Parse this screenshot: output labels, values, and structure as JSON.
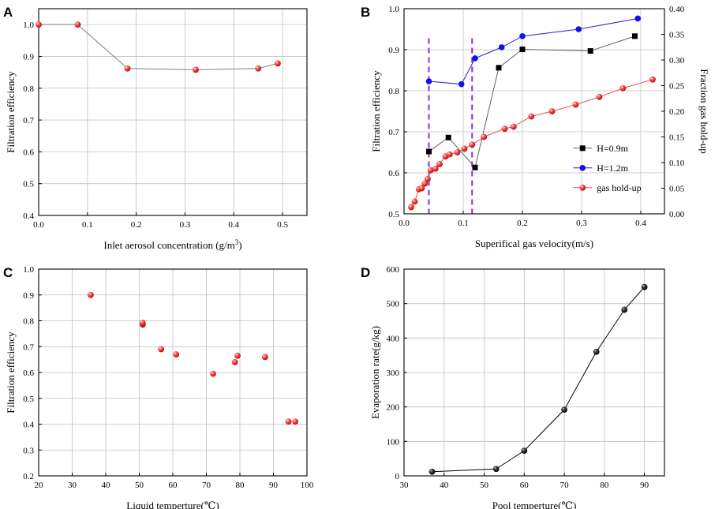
{
  "chart_data": [
    {
      "panel": "A",
      "type": "line",
      "xlabel": "Inlet aerosol concentration (g/m3)",
      "ylabel": "Filtration efficiency",
      "xlim": [
        0,
        0.55
      ],
      "ylim": [
        0.4,
        1.05
      ],
      "xticks": [
        0.0,
        0.1,
        0.2,
        0.3,
        0.4,
        0.5
      ],
      "xtick_labels": [
        "0.0",
        "0.1",
        "0.2",
        "0.3",
        "0.4",
        "0.5"
      ],
      "yticks": [
        0.4,
        0.5,
        0.6,
        0.7,
        0.8,
        0.9,
        1.0
      ],
      "ytick_labels": [
        "0.4",
        "0.5",
        "0.6",
        "0.7",
        "0.8",
        "0.9",
        "1.0"
      ],
      "grid": true,
      "series": [
        {
          "name": "filtration efficiency",
          "color": "#e02020",
          "marker": "sphere",
          "line_color": "#808080",
          "x": [
            0.0,
            0.08,
            0.182,
            0.322,
            0.45,
            0.49
          ],
          "y": [
            1.0,
            1.0,
            0.862,
            0.858,
            0.862,
            0.878
          ]
        }
      ]
    },
    {
      "panel": "B",
      "type": "line",
      "xlabel": "Superifical gas velocity(m/s)",
      "ylabel": "Filtration efficiency",
      "y2label": "Fraction gas hold-up",
      "xlim": [
        0,
        0.44
      ],
      "ylim": [
        0.5,
        1.0
      ],
      "y2lim": [
        0,
        0.4
      ],
      "xticks": [
        0.0,
        0.1,
        0.2,
        0.3,
        0.4
      ],
      "xtick_labels": [
        "0.0",
        "0.1",
        "0.2",
        "0.3",
        "0.4"
      ],
      "yticks": [
        0.5,
        0.6,
        0.7,
        0.8,
        0.9,
        1.0
      ],
      "ytick_labels": [
        "0.5",
        "0.6",
        "0.7",
        "0.8",
        "0.9",
        "1.0"
      ],
      "y2ticks": [
        0,
        0.05,
        0.1,
        0.15,
        0.2,
        0.25,
        0.3,
        0.35,
        0.4
      ],
      "y2tick_labels": [
        "0.00",
        "0.05",
        "0.10",
        "0.15",
        "0.20",
        "0.25",
        "0.30",
        "0.35",
        "0.40"
      ],
      "grid": true,
      "legend": "right",
      "vlines": [
        0.042,
        0.115
      ],
      "vline_color": "#8a2be2",
      "series": [
        {
          "name": "H=0.9m",
          "axis": "left",
          "color": "#000000",
          "marker": "square",
          "line_color": "#606060",
          "x": [
            0.042,
            0.075,
            0.12,
            0.16,
            0.2,
            0.315,
            0.39
          ],
          "y": [
            0.652,
            0.686,
            0.613,
            0.856,
            0.901,
            0.897,
            0.933
          ]
        },
        {
          "name": "H=1.2m",
          "axis": "left",
          "color": "#1010f0",
          "marker": "circle",
          "line_color": "#2020d0",
          "x": [
            0.042,
            0.097,
            0.12,
            0.165,
            0.2,
            0.295,
            0.395
          ],
          "y": [
            0.823,
            0.816,
            0.879,
            0.906,
            0.933,
            0.95,
            0.976
          ]
        },
        {
          "name": "gas hold-up",
          "axis": "right",
          "color": "#e02020",
          "marker": "sphere",
          "line_color": "#e05050",
          "x": [
            0.012,
            0.018,
            0.025,
            0.03,
            0.035,
            0.04,
            0.045,
            0.053,
            0.06,
            0.07,
            0.077,
            0.09,
            0.102,
            0.115,
            0.135,
            0.17,
            0.185,
            0.215,
            0.25,
            0.29,
            0.33,
            0.37,
            0.42
          ],
          "y": [
            0.013,
            0.024,
            0.048,
            0.05,
            0.059,
            0.068,
            0.085,
            0.088,
            0.097,
            0.112,
            0.116,
            0.12,
            0.127,
            0.135,
            0.15,
            0.166,
            0.17,
            0.19,
            0.2,
            0.213,
            0.228,
            0.245,
            0.262
          ]
        }
      ]
    },
    {
      "panel": "C",
      "type": "scatter",
      "xlabel": "Liquid temperture(℃)",
      "ylabel": "Filtration efficiency",
      "xlim": [
        20,
        100
      ],
      "ylim": [
        0.2,
        1.0
      ],
      "xticks": [
        20,
        30,
        40,
        50,
        60,
        70,
        80,
        90,
        100
      ],
      "xtick_labels": [
        "20",
        "30",
        "40",
        "50",
        "60",
        "70",
        "80",
        "90",
        "100"
      ],
      "yticks": [
        0.2,
        0.3,
        0.4,
        0.5,
        0.6,
        0.7,
        0.8,
        0.9,
        1.0
      ],
      "ytick_labels": [
        "0.2",
        "0.3",
        "0.4",
        "0.5",
        "0.6",
        "0.7",
        "0.8",
        "0.9",
        "1.0"
      ],
      "grid": true,
      "series": [
        {
          "name": "filtration efficiency",
          "color": "#e02020",
          "marker": "sphere",
          "x": [
            35.5,
            51,
            51,
            56.5,
            61,
            72,
            78.5,
            79.3,
            87.5,
            94.5,
            96.5
          ],
          "y": [
            0.9,
            0.785,
            0.792,
            0.69,
            0.67,
            0.595,
            0.64,
            0.665,
            0.66,
            0.41,
            0.41
          ]
        }
      ]
    },
    {
      "panel": "D",
      "type": "line",
      "xlabel": "Pool temperture(℃)",
      "ylabel": "Evaporation rate(g/kg)",
      "xlim": [
        30,
        95
      ],
      "ylim": [
        0,
        600
      ],
      "xticks": [
        30,
        40,
        50,
        60,
        70,
        80,
        90
      ],
      "xtick_labels": [
        "30",
        "40",
        "50",
        "60",
        "70",
        "80",
        "90"
      ],
      "yticks": [
        0,
        100,
        200,
        300,
        400,
        500,
        600
      ],
      "ytick_labels": [
        "0",
        "100",
        "200",
        "300",
        "400",
        "500",
        "600"
      ],
      "grid": true,
      "series": [
        {
          "name": "evaporation rate",
          "color": "#111111",
          "marker": "sphere",
          "line_color": "#000000",
          "x": [
            37,
            53,
            60,
            70,
            78,
            85,
            90
          ],
          "y": [
            12,
            20,
            73,
            192,
            360,
            482,
            548
          ]
        }
      ]
    }
  ]
}
